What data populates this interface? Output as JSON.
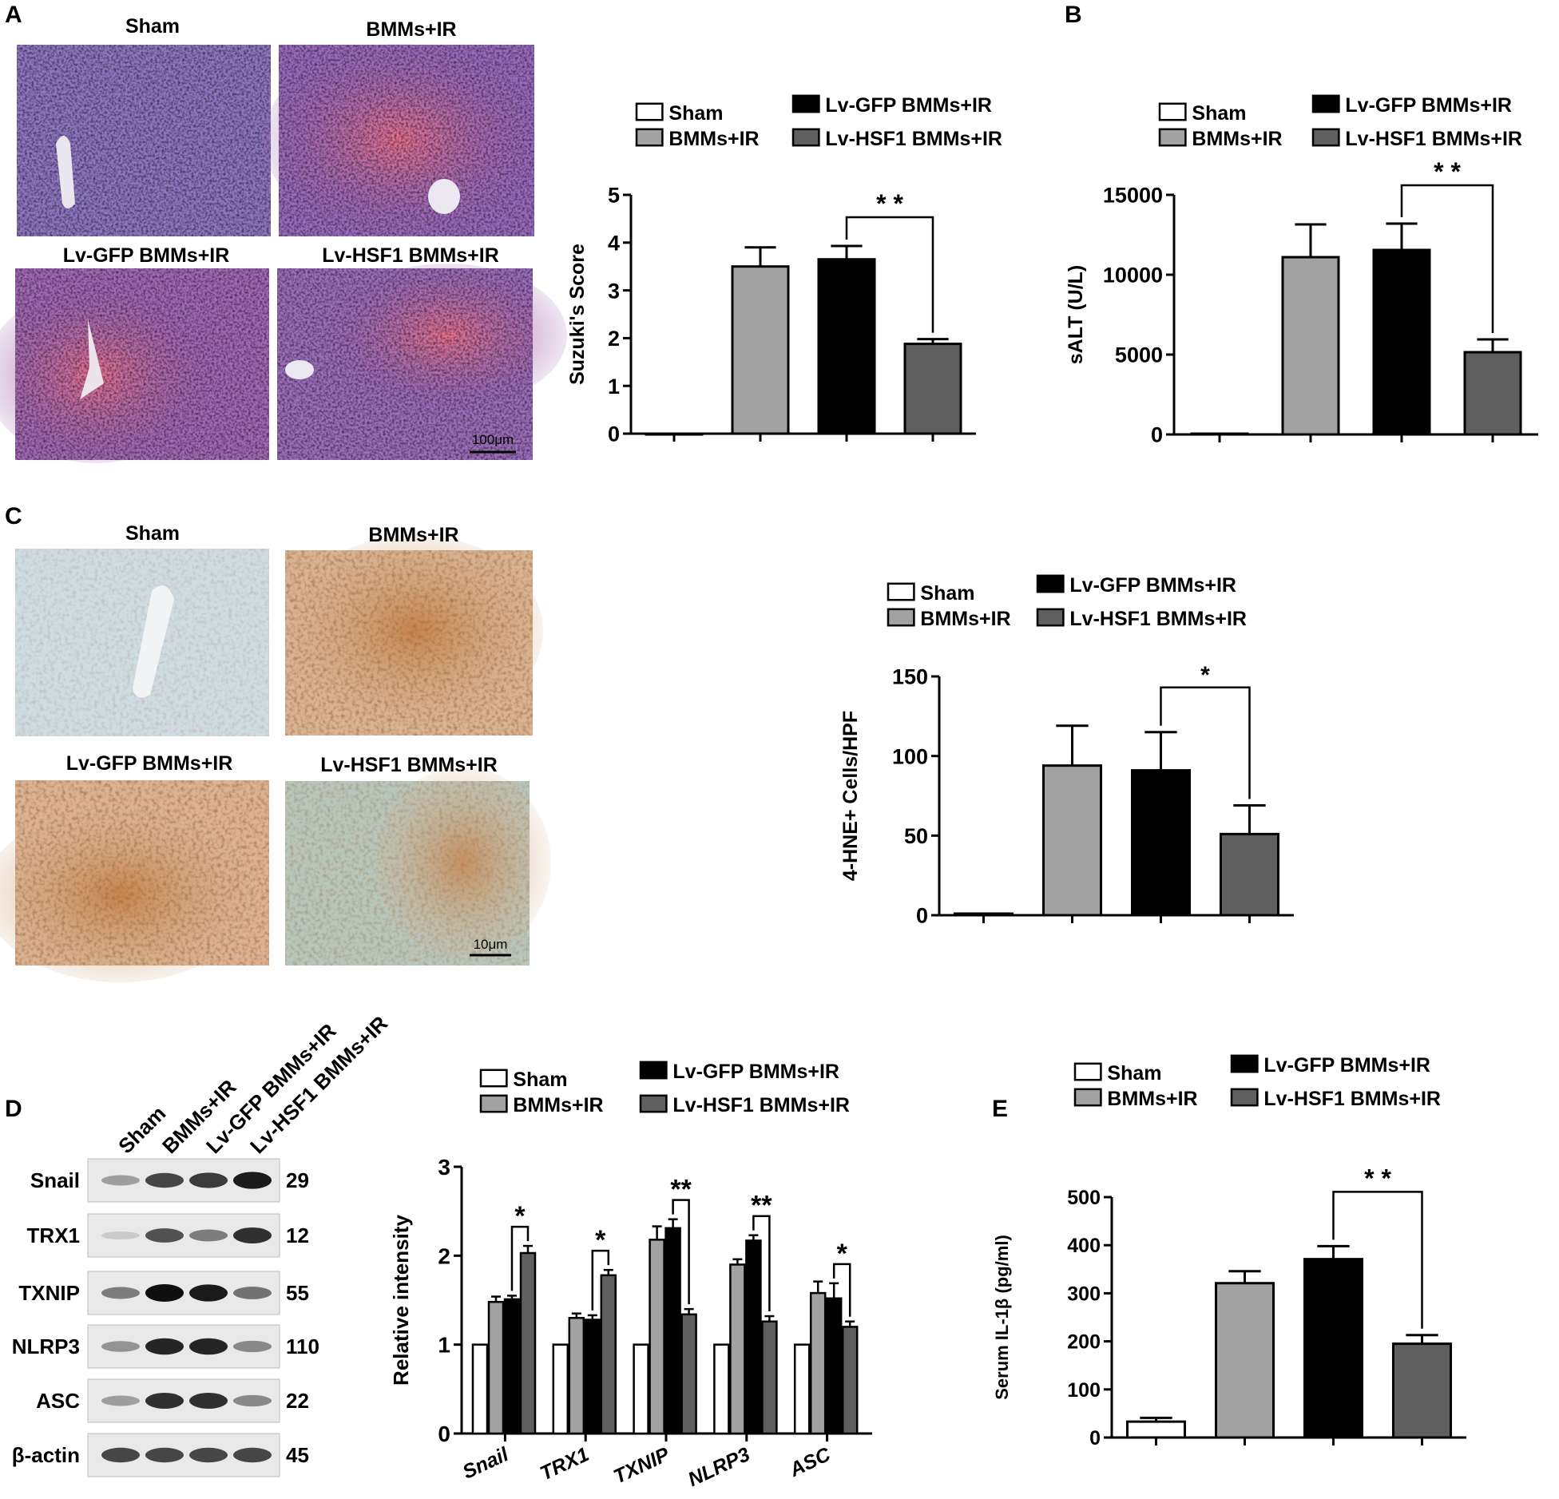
{
  "groups": [
    "Sham",
    "BMMs+IR",
    "Lv-GFP BMMs+IR",
    "Lv-HSF1 BMMs+IR"
  ],
  "colors": {
    "Sham": "#ffffff",
    "BMMs+IR": "#a2a2a2",
    "Lv-GFP BMMs+IR": "#000000",
    "Lv-HSF1 BMMs+IR": "#5f5f5f"
  },
  "panels": {
    "A": {
      "letter": "A",
      "image_titles": [
        "Sham",
        "BMMs+IR",
        "Lv-GFP BMMs+IR",
        "Lv-HSF1 BMMs+IR"
      ],
      "scale_bar": "100μm"
    },
    "B": {
      "letter": "B"
    },
    "C": {
      "letter": "C",
      "image_titles": [
        "Sham",
        "BMMs+IR",
        "Lv-GFP BMMs+IR",
        "Lv-HSF1 BMMs+IR"
      ],
      "scale_bar": "10μm"
    },
    "D": {
      "letter": "D"
    },
    "E": {
      "letter": "E"
    }
  },
  "western_blot": {
    "lane_labels": [
      "Sham",
      "BMMs+IR",
      "Lv-GFP BMMs+IR",
      "Lv-HSF1 BMMs+IR"
    ],
    "rows": [
      {
        "protein": "Snail",
        "kda": "29",
        "intensity": [
          0.35,
          0.75,
          0.8,
          0.95
        ]
      },
      {
        "protein": "TRX1",
        "kda": "12",
        "intensity": [
          0.15,
          0.7,
          0.5,
          0.85
        ]
      },
      {
        "protein": "TXNIP",
        "kda": "55",
        "intensity": [
          0.5,
          1.0,
          0.95,
          0.55
        ]
      },
      {
        "protein": "NLRP3",
        "kda": "110",
        "intensity": [
          0.4,
          0.9,
          0.9,
          0.45
        ]
      },
      {
        "protein": "ASC",
        "kda": "22",
        "intensity": [
          0.35,
          0.85,
          0.85,
          0.45
        ]
      },
      {
        "protein": "β-actin",
        "kda": "45",
        "intensity": [
          0.75,
          0.75,
          0.75,
          0.75
        ]
      }
    ]
  },
  "chart_data": [
    {
      "id": "suzuki",
      "type": "bar",
      "ylabel": "Suzuki's Score",
      "ylim": [
        0,
        5
      ],
      "yticks": [
        0,
        1,
        2,
        3,
        4,
        5
      ],
      "categories": [
        "Sham",
        "BMMs+IR",
        "Lv-GFP BMMs+IR",
        "Lv-HSF1 BMMs+IR"
      ],
      "values": [
        0,
        3.5,
        3.65,
        1.88
      ],
      "errors": [
        0,
        0.4,
        0.28,
        0.1
      ],
      "significance": {
        "from": 2,
        "to": 3,
        "label": "* *"
      },
      "legend": "top"
    },
    {
      "id": "salt",
      "type": "bar",
      "ylabel": "sALT (U/L)",
      "ylim": [
        0,
        15000
      ],
      "yticks": [
        0,
        5000,
        10000,
        15000
      ],
      "categories": [
        "Sham",
        "BMMs+IR",
        "Lv-GFP BMMs+IR",
        "Lv-HSF1 BMMs+IR"
      ],
      "values": [
        50,
        11100,
        11550,
        5150
      ],
      "errors": [
        0,
        2050,
        1650,
        800
      ],
      "significance": {
        "from": 2,
        "to": 3,
        "label": "* *"
      },
      "legend": "top"
    },
    {
      "id": "hne",
      "type": "bar",
      "ylabel": "4-HNE+ Cells/HPF",
      "ylim": [
        0,
        150
      ],
      "yticks": [
        0,
        50,
        100,
        150
      ],
      "categories": [
        "Sham",
        "BMMs+IR",
        "Lv-GFP BMMs+IR",
        "Lv-HSF1 BMMs+IR"
      ],
      "values": [
        1,
        94,
        91,
        51
      ],
      "errors": [
        0,
        25,
        24,
        18
      ],
      "significance": {
        "from": 2,
        "to": 3,
        "label": "*"
      },
      "legend": "top"
    },
    {
      "id": "relative",
      "type": "bar",
      "ylabel": "Relative intensity",
      "ylim": [
        0,
        3
      ],
      "yticks": [
        0,
        1,
        2,
        3
      ],
      "categories": [
        "Snail",
        "TRX1",
        "TXNIP",
        "NLRP3",
        "ASC"
      ],
      "series": [
        {
          "name": "Sham",
          "values": [
            1,
            1,
            1,
            1,
            1
          ],
          "errors": [
            0,
            0,
            0,
            0,
            0
          ]
        },
        {
          "name": "BMMs+IR",
          "values": [
            1.48,
            1.3,
            2.18,
            1.9,
            1.58
          ],
          "errors": [
            0.06,
            0.05,
            0.15,
            0.06,
            0.13
          ]
        },
        {
          "name": "Lv-GFP BMMs+IR",
          "values": [
            1.51,
            1.28,
            2.31,
            2.17,
            1.52
          ],
          "errors": [
            0.04,
            0.05,
            0.1,
            0.06,
            0.17
          ]
        },
        {
          "name": "Lv-HSF1 BMMs+IR",
          "values": [
            2.03,
            1.78,
            1.34,
            1.26,
            1.2
          ],
          "errors": [
            0.08,
            0.06,
            0.06,
            0.06,
            0.06
          ]
        }
      ],
      "significance": [
        "*",
        "*",
        "**",
        "**",
        "*"
      ],
      "legend": "top"
    },
    {
      "id": "il1b",
      "type": "bar",
      "ylabel": "Serum IL-1β (pg/ml)",
      "ylim": [
        0,
        500
      ],
      "yticks": [
        0,
        100,
        200,
        300,
        400,
        500
      ],
      "categories": [
        "Sham",
        "BMMs+IR",
        "Lv-GFP BMMs+IR",
        "Lv-HSF1 BMMs+IR"
      ],
      "values": [
        33,
        321,
        371,
        195
      ],
      "errors": [
        8,
        25,
        27,
        18
      ],
      "significance": {
        "from": 2,
        "to": 3,
        "label": "* *"
      },
      "legend": "top"
    }
  ]
}
